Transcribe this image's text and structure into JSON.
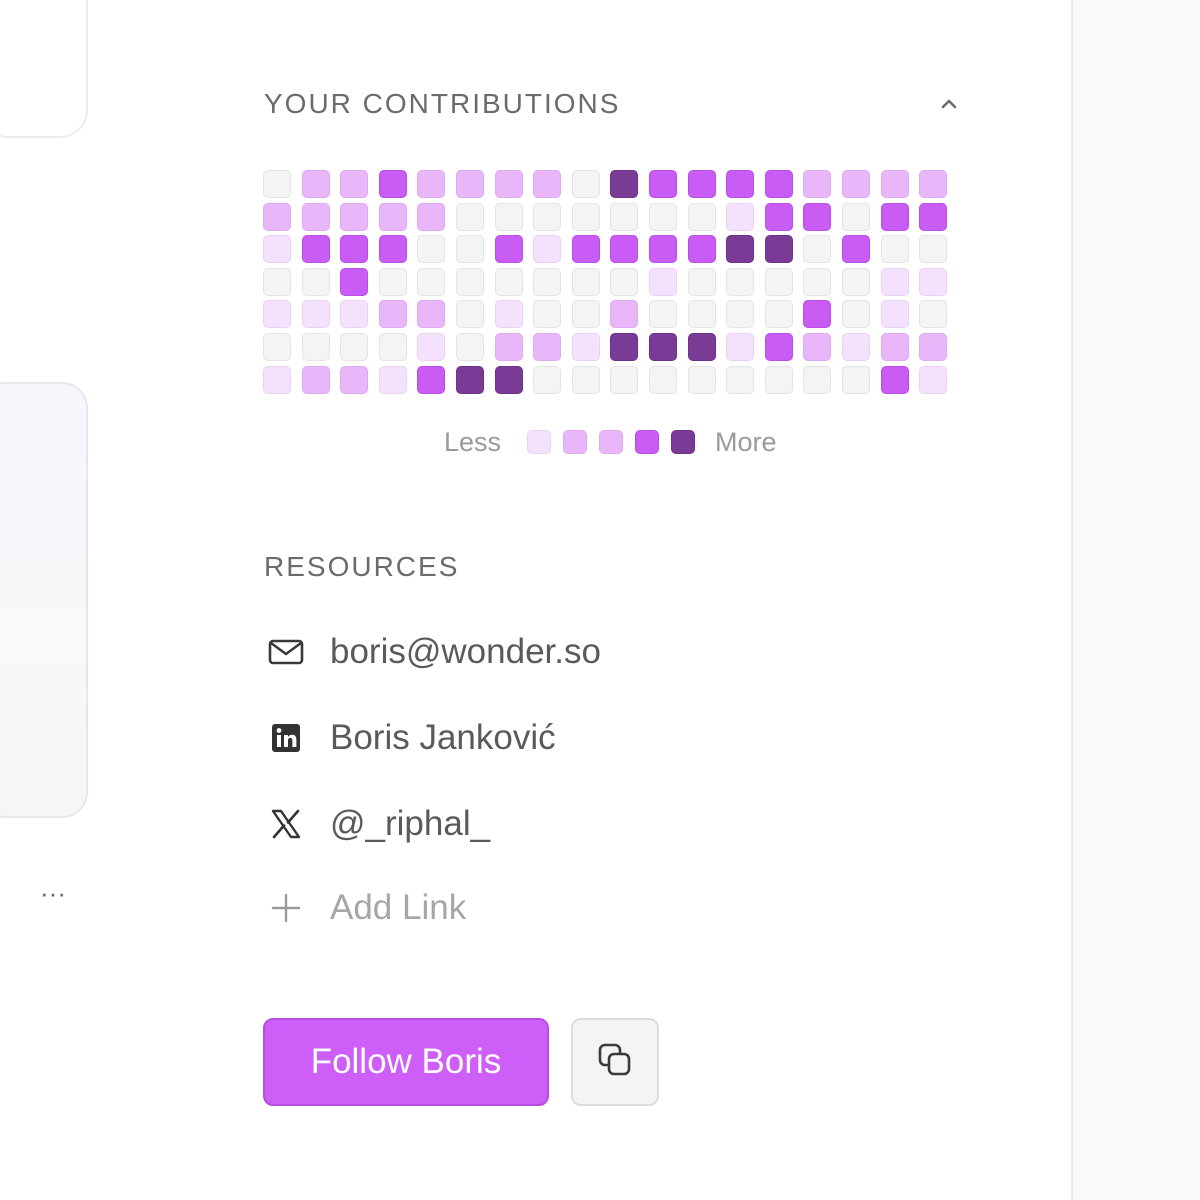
{
  "contributions": {
    "title": "YOUR CONTRIBUTIONS",
    "collapse_icon": "chevron-up-icon",
    "levels": [
      [
        0,
        2,
        2,
        3,
        2,
        2,
        2,
        2,
        0,
        4,
        3,
        3,
        3,
        3,
        2,
        2,
        2,
        2
      ],
      [
        2,
        2,
        2,
        2,
        2,
        0,
        0,
        0,
        0,
        0,
        0,
        0,
        1,
        3,
        3,
        0,
        3,
        3
      ],
      [
        1,
        3,
        3,
        3,
        0,
        0,
        3,
        1,
        3,
        3,
        3,
        3,
        4,
        4,
        0,
        3,
        0,
        0
      ],
      [
        0,
        0,
        3,
        0,
        0,
        0,
        0,
        0,
        0,
        0,
        1,
        0,
        0,
        0,
        0,
        0,
        1,
        1
      ],
      [
        1,
        1,
        1,
        2,
        2,
        0,
        1,
        0,
        0,
        2,
        0,
        0,
        0,
        0,
        3,
        0,
        1,
        0
      ],
      [
        0,
        0,
        0,
        0,
        1,
        0,
        2,
        2,
        1,
        4,
        4,
        4,
        1,
        3,
        2,
        1,
        2,
        2
      ],
      [
        1,
        2,
        2,
        1,
        3,
        4,
        4,
        0,
        0,
        0,
        0,
        0,
        0,
        0,
        0,
        0,
        3,
        1
      ]
    ],
    "legend": {
      "less": "Less",
      "more": "More",
      "levels": [
        1,
        2,
        2,
        3,
        4
      ]
    },
    "colors": {
      "level0": "#f4f4f4",
      "level1": "#f4e1fb",
      "level2": "#e9b6f9",
      "level3": "#c95cf5",
      "level4": "#7a3b96"
    }
  },
  "resources": {
    "title": "RESOURCES",
    "items": [
      {
        "icon": "mail-icon",
        "label": "boris@wonder.so"
      },
      {
        "icon": "linkedin-icon",
        "label": "Boris Janković"
      },
      {
        "icon": "x-logo-icon",
        "label": "@_riphal_"
      }
    ],
    "add_link": {
      "icon": "plus-icon",
      "label": "Add Link"
    }
  },
  "actions": {
    "follow_label": "Follow Boris",
    "follow_color": "#cd5ef7",
    "copy_icon": "copy-icon"
  },
  "sidebar": {
    "more_icon": "more-horizontal-icon",
    "more_label": "···"
  }
}
